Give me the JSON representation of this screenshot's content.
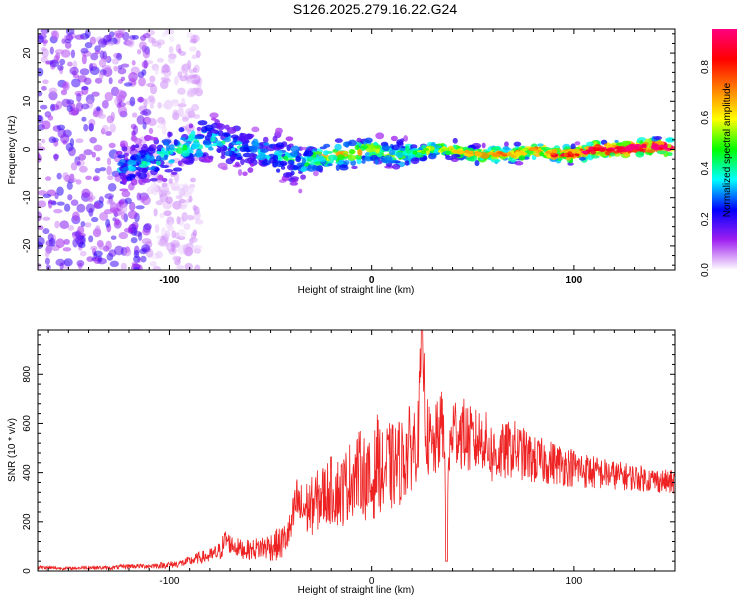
{
  "figure": {
    "title": "S126.2025.279.16.22.G24"
  },
  "chart_data": [
    {
      "type": "heatmap",
      "title": "S126.2025.279.16.22.G24",
      "xlabel": "Height of straight line (km)",
      "ylabel": "Frequency (Hz)",
      "xlim": [
        -165,
        150
      ],
      "ylim": [
        -25,
        25
      ],
      "xticks": [
        -100,
        0,
        100
      ],
      "yticks": [
        -20,
        -10,
        0,
        10,
        20
      ],
      "grid": false,
      "colorbar": {
        "label": "Normalized spectral amplitude",
        "range": [
          0,
          0.95
        ],
        "ticks": [
          "0.0",
          "0.2",
          "0.4",
          "0.6",
          "0.8"
        ],
        "colormap": [
          "#ffffff",
          "#a020f0",
          "#0000ff",
          "#00ffff",
          "#00ff00",
          "#ffff00",
          "#ff8000",
          "#ff0000",
          "#ff0080"
        ]
      },
      "ridge": {
        "x": [
          -125,
          -115,
          -100,
          -90,
          -80,
          -70,
          -60,
          -50,
          -40,
          -35,
          -30,
          -20,
          -10,
          0,
          10,
          20,
          30,
          40,
          50,
          60,
          70,
          80,
          90,
          100,
          110,
          120,
          130,
          140,
          148
        ],
        "frequency": [
          -4,
          -3,
          -1,
          1,
          2,
          1,
          0,
          -1,
          -2,
          -3,
          -2,
          -1,
          -1,
          0,
          -1,
          -1,
          0,
          0,
          -1,
          -1,
          -1,
          0,
          -1,
          -1,
          0,
          0,
          0.5,
          0.5,
          0.5
        ],
        "amplitude": [
          0.25,
          0.3,
          0.35,
          0.35,
          0.35,
          0.3,
          0.3,
          0.3,
          0.35,
          0.35,
          0.45,
          0.55,
          0.55,
          0.5,
          0.45,
          0.45,
          0.5,
          0.55,
          0.6,
          0.6,
          0.62,
          0.65,
          0.7,
          0.75,
          0.8,
          0.85,
          0.9,
          0.9,
          0.88
        ]
      },
      "noise_region": {
        "x": [
          -165,
          -110
        ],
        "amplitude": 0.15
      }
    },
    {
      "type": "line",
      "xlabel": "Height of straight line (km)",
      "ylabel": "SNR (10 * v/v)",
      "xlim": [
        -165,
        150
      ],
      "ylim": [
        0,
        980
      ],
      "xticks": [
        -100,
        0,
        100
      ],
      "yticks": [
        0,
        200,
        400,
        600,
        800
      ],
      "grid": false,
      "series": [
        {
          "color": "#ee2222",
          "x": [
            -165,
            -150,
            -140,
            -130,
            -120,
            -110,
            -100,
            -95,
            -90,
            -85,
            -80,
            -75,
            -72,
            -70,
            -65,
            -60,
            -55,
            -50,
            -45,
            -42,
            -40,
            -37,
            -35,
            -30,
            -25,
            -20,
            -15,
            -10,
            -5,
            0,
            3,
            5,
            8,
            10,
            15,
            20,
            23,
            25,
            27,
            30,
            35,
            37,
            40,
            45,
            50,
            55,
            60,
            65,
            70,
            80,
            90,
            100,
            110,
            120,
            130,
            140,
            148
          ],
          "values": [
            15,
            10,
            15,
            12,
            20,
            20,
            25,
            30,
            40,
            55,
            60,
            80,
            130,
            110,
            90,
            85,
            95,
            100,
            110,
            140,
            170,
            290,
            250,
            260,
            300,
            330,
            320,
            380,
            410,
            330,
            470,
            380,
            430,
            420,
            450,
            510,
            540,
            980,
            560,
            480,
            600,
            350,
            580,
            560,
            520,
            540,
            470,
            480,
            500,
            450,
            440,
            420,
            400,
            390,
            380,
            370,
            360
          ],
          "spread": [
            8,
            6,
            8,
            8,
            10,
            10,
            15,
            15,
            20,
            25,
            30,
            40,
            50,
            40,
            40,
            40,
            50,
            60,
            70,
            70,
            80,
            100,
            110,
            120,
            130,
            140,
            150,
            160,
            170,
            180,
            180,
            180,
            180,
            180,
            180,
            180,
            160,
            160,
            160,
            160,
            150,
            150,
            150,
            150,
            140,
            130,
            130,
            120,
            120,
            100,
            90,
            80,
            70,
            60,
            55,
            50,
            50
          ]
        }
      ]
    }
  ]
}
